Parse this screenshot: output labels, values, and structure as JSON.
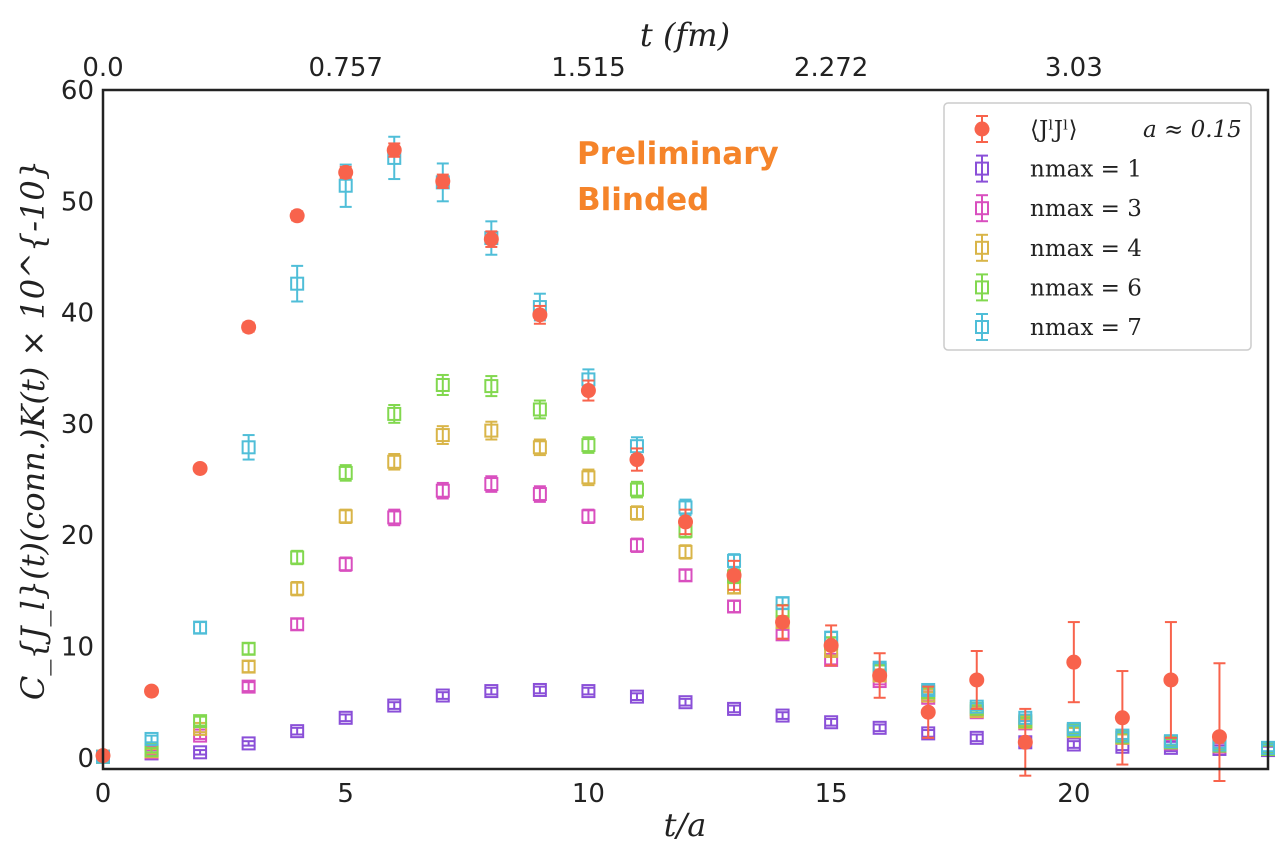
{
  "chart_data": {
    "type": "scatter",
    "title": "",
    "xlabel": "t/a",
    "ylabel": "C_{J_l}(t)(conn.)K(t) × 10^{-10}",
    "top_xlabel": "t (fm)",
    "xlim": [
      0,
      24
    ],
    "ylim": [
      -1,
      60
    ],
    "x_ticks": [
      0,
      5,
      10,
      15,
      20
    ],
    "x_tick_labels": [
      "0",
      "5",
      "10",
      "15",
      "20"
    ],
    "y_ticks": [
      0,
      10,
      20,
      30,
      40,
      50,
      60
    ],
    "y_tick_labels": [
      "0",
      "10",
      "20",
      "30",
      "40",
      "50",
      "60"
    ],
    "top_ticks": [
      0,
      5,
      10,
      15,
      20
    ],
    "top_tick_labels": [
      "0.0",
      "0.757",
      "1.515",
      "2.272",
      "3.03"
    ],
    "annotations": [
      "Preliminary",
      "Blinded"
    ],
    "legend_location": "top-right",
    "series": [
      {
        "name": "⟨J^l J^l⟩",
        "legend_text": "⟨JˡJˡ⟩",
        "legend_extra": "a ≈ 0.15",
        "color": "#f8634c",
        "marker": "circle",
        "x": [
          0,
          1,
          2,
          3,
          4,
          5,
          6,
          7,
          8,
          9,
          10,
          11,
          12,
          13,
          14,
          15,
          16,
          17,
          18,
          19,
          20,
          21,
          22,
          23
        ],
        "values": [
          0.2,
          6.0,
          26.0,
          38.7,
          48.7,
          52.6,
          54.6,
          51.8,
          46.6,
          39.8,
          33.0,
          26.8,
          21.2,
          16.4,
          12.2,
          10.1,
          7.4,
          4.1,
          7.0,
          1.4,
          8.6,
          3.6,
          7.0,
          1.9
        ],
        "errors": [
          0.1,
          0.3,
          0.3,
          0.4,
          0.4,
          0.5,
          0.6,
          0.6,
          0.7,
          0.8,
          0.9,
          1.0,
          1.1,
          1.3,
          1.5,
          1.8,
          2.0,
          2.3,
          2.6,
          3.0,
          3.6,
          4.2,
          5.2,
          6.6
        ]
      },
      {
        "name": "n_max = 1",
        "legend_text": "nmax = 1",
        "color": "#8a4fd8",
        "marker": "open-square",
        "x": [
          0,
          1,
          2,
          3,
          4,
          5,
          6,
          7,
          8,
          9,
          10,
          11,
          12,
          13,
          14,
          15,
          16,
          17,
          18,
          19,
          20,
          21,
          22,
          23,
          24
        ],
        "values": [
          0.1,
          0.4,
          0.5,
          1.3,
          2.4,
          3.6,
          4.7,
          5.6,
          6.0,
          6.1,
          6.0,
          5.5,
          5.0,
          4.4,
          3.8,
          3.2,
          2.7,
          2.2,
          1.8,
          1.4,
          1.2,
          1.0,
          0.9,
          0.8,
          0.7
        ],
        "errors": [
          0.05,
          0.1,
          0.2,
          0.2,
          0.3,
          0.3,
          0.3,
          0.3,
          0.3,
          0.3,
          0.3,
          0.3,
          0.3,
          0.3,
          0.3,
          0.3,
          0.3,
          0.3,
          0.3,
          0.3,
          0.3,
          0.3,
          0.3,
          0.3,
          0.3
        ]
      },
      {
        "name": "n_max = 3",
        "legend_text": "nmax = 3",
        "color": "#d94fbf",
        "marker": "open-square",
        "x": [
          0,
          1,
          2,
          3,
          4,
          5,
          6,
          7,
          8,
          9,
          10,
          11,
          12,
          13,
          14,
          15,
          16,
          17,
          18,
          19,
          20,
          21,
          22,
          23,
          24
        ],
        "values": [
          0.1,
          0.5,
          2.0,
          6.4,
          12.0,
          17.4,
          21.6,
          24.0,
          24.6,
          23.7,
          21.7,
          19.1,
          16.4,
          13.6,
          11.1,
          8.8,
          6.9,
          5.4,
          4.1,
          3.1,
          2.4,
          1.8,
          1.3,
          1.0,
          0.8
        ],
        "errors": [
          0.05,
          0.2,
          0.3,
          0.4,
          0.5,
          0.6,
          0.7,
          0.7,
          0.7,
          0.7,
          0.6,
          0.6,
          0.5,
          0.5,
          0.4,
          0.4,
          0.3,
          0.3,
          0.3,
          0.3,
          0.3,
          0.3,
          0.3,
          0.3,
          0.3
        ]
      },
      {
        "name": "n_max = 4",
        "legend_text": "nmax = 4",
        "color": "#d9b548",
        "marker": "open-square",
        "x": [
          0,
          1,
          2,
          3,
          4,
          5,
          6,
          7,
          8,
          9,
          10,
          11,
          12,
          13,
          14,
          15,
          16,
          17,
          18,
          19,
          20,
          21,
          22,
          23,
          24
        ],
        "values": [
          0.1,
          0.6,
          2.6,
          8.2,
          15.2,
          21.7,
          26.6,
          29.0,
          29.4,
          27.9,
          25.2,
          22.0,
          18.5,
          15.3,
          12.2,
          9.6,
          7.4,
          5.6,
          4.2,
          3.2,
          2.4,
          1.8,
          1.4,
          1.1,
          0.8
        ],
        "errors": [
          0.05,
          0.2,
          0.3,
          0.5,
          0.6,
          0.6,
          0.7,
          0.8,
          0.8,
          0.7,
          0.7,
          0.6,
          0.6,
          0.5,
          0.5,
          0.4,
          0.4,
          0.3,
          0.3,
          0.3,
          0.3,
          0.3,
          0.3,
          0.3,
          0.3
        ]
      },
      {
        "name": "n_max = 6",
        "legend_text": "nmax = 6",
        "color": "#82d84f",
        "marker": "open-square",
        "x": [
          0,
          1,
          2,
          3,
          4,
          5,
          6,
          7,
          8,
          9,
          10,
          11,
          12,
          13,
          14,
          15,
          16,
          17,
          18,
          19,
          20,
          21,
          22,
          23,
          24
        ],
        "values": [
          0.1,
          0.7,
          3.3,
          9.8,
          18.0,
          25.6,
          30.9,
          33.5,
          33.4,
          31.3,
          28.1,
          24.1,
          20.4,
          16.3,
          13.2,
          10.3,
          7.9,
          5.9,
          4.4,
          3.3,
          2.5,
          1.9,
          1.4,
          1.1,
          0.8
        ],
        "errors": [
          0.05,
          0.2,
          0.4,
          0.5,
          0.6,
          0.7,
          0.8,
          0.9,
          0.9,
          0.8,
          0.7,
          0.7,
          0.6,
          0.6,
          0.5,
          0.5,
          0.4,
          0.4,
          0.3,
          0.3,
          0.3,
          0.3,
          0.3,
          0.3,
          0.3
        ]
      },
      {
        "name": "n_max = 7",
        "legend_text": "nmax = 7",
        "color": "#4fbed8",
        "marker": "open-square",
        "x": [
          0,
          1,
          2,
          3,
          4,
          5,
          6,
          7,
          8,
          9,
          10,
          11,
          12,
          13,
          14,
          15,
          16,
          17,
          18,
          19,
          20,
          21,
          22,
          23,
          24
        ],
        "values": [
          0.1,
          1.7,
          11.7,
          27.9,
          42.6,
          51.4,
          53.9,
          51.7,
          46.7,
          40.5,
          34.0,
          28.0,
          22.5,
          17.7,
          13.9,
          10.8,
          8.1,
          6.1,
          4.6,
          3.6,
          2.6,
          2.0,
          1.5,
          1.2,
          0.9
        ],
        "errors": [
          0.05,
          0.3,
          0.5,
          1.1,
          1.6,
          1.9,
          1.9,
          1.7,
          1.5,
          1.2,
          0.9,
          0.8,
          0.7,
          0.6,
          0.5,
          0.5,
          0.4,
          0.4,
          0.3,
          0.3,
          0.3,
          0.3,
          0.3,
          0.3,
          0.3
        ]
      }
    ]
  }
}
